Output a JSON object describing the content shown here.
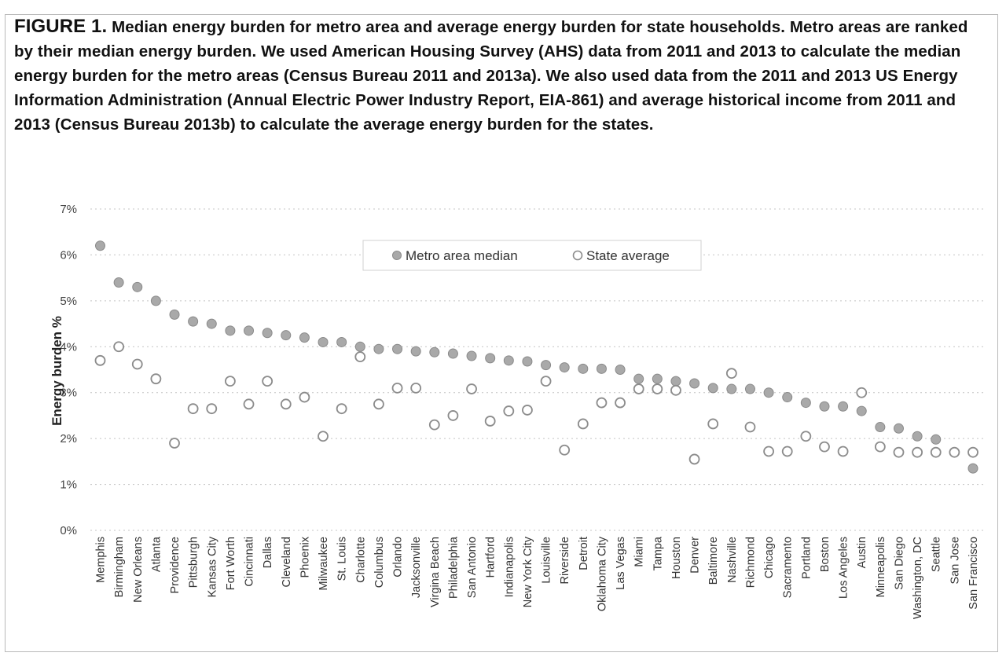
{
  "caption": {
    "label": "FIGURE 1.",
    "text": "Median energy burden for metro area and average energy burden for state households. Metro areas are ranked by their median energy burden. We used American Housing Survey (AHS) data from 2011 and 2013 to calculate the median energy burden for the metro areas (Census Bureau 2011 and 2013a). We also used data from the 2011 and 2013 US Energy Information Administration (Annual Electric Power Industry Report, EIA-861) and average historical income from 2011 and 2013 (Census Bureau 2013b) to calculate the average energy burden for the states."
  },
  "chart_data": {
    "type": "scatter",
    "ylabel": "Energy burden %",
    "xlabel": "",
    "ylim": [
      0,
      7
    ],
    "yticks": [
      "0%",
      "1%",
      "2%",
      "3%",
      "4%",
      "5%",
      "6%",
      "7%"
    ],
    "grid": "horizontal dotted",
    "legend_position": "top-center",
    "categories": [
      "Memphis",
      "Birmingham",
      "New Orleans",
      "Atlanta",
      "Providence",
      "Pittsburgh",
      "Kansas City",
      "Fort Worth",
      "Cincinnati",
      "Dallas",
      "Cleveland",
      "Phoenix",
      "Milwaukee",
      "St. Louis",
      "Charlotte",
      "Columbus",
      "Orlando",
      "Jacksonville",
      "Virgina Beach",
      "Philadelphia",
      "San Antonio",
      "Hartford",
      "Indianapolis",
      "New York City",
      "Louisville",
      "Riverside",
      "Detroit",
      "Oklahoma City",
      "Las Vegas",
      "Miami",
      "Tampa",
      "Houston",
      "Denver",
      "Baltimore",
      "Nashville",
      "Richmond",
      "Chicago",
      "Sacramento",
      "Portland",
      "Boston",
      "Los Angeles",
      "Austin",
      "Minneapolis",
      "San Diego",
      "Washington, DC",
      "Seattle",
      "San Jose",
      "San Francisco"
    ],
    "series": [
      {
        "name": "Metro area median",
        "marker": "filled",
        "color": "#a9a9a9",
        "values": [
          6.2,
          5.4,
          5.3,
          5.0,
          4.7,
          4.55,
          4.5,
          4.35,
          4.35,
          4.3,
          4.25,
          4.2,
          4.1,
          4.1,
          4.0,
          3.95,
          3.95,
          3.9,
          3.88,
          3.85,
          3.8,
          3.75,
          3.7,
          3.68,
          3.6,
          3.55,
          3.52,
          3.52,
          3.5,
          3.3,
          3.3,
          3.25,
          3.2,
          3.1,
          3.08,
          3.08,
          3.0,
          2.9,
          2.78,
          2.7,
          2.7,
          2.6,
          2.25,
          2.22,
          2.05,
          1.98,
          null,
          1.35
        ]
      },
      {
        "name": "State average",
        "marker": "open",
        "color": "#8c8c8c",
        "values": [
          3.7,
          4.0,
          3.62,
          3.3,
          1.9,
          2.65,
          2.65,
          3.25,
          2.75,
          3.25,
          2.75,
          2.9,
          2.05,
          2.65,
          3.78,
          2.75,
          3.1,
          3.1,
          2.3,
          2.5,
          3.08,
          2.38,
          2.6,
          2.62,
          3.25,
          1.75,
          2.32,
          2.78,
          2.78,
          3.08,
          3.08,
          3.05,
          1.55,
          2.32,
          3.42,
          2.25,
          1.72,
          1.72,
          2.05,
          1.82,
          1.72,
          3.0,
          1.82,
          1.7,
          1.7,
          1.7,
          1.7,
          1.7
        ]
      }
    ]
  }
}
